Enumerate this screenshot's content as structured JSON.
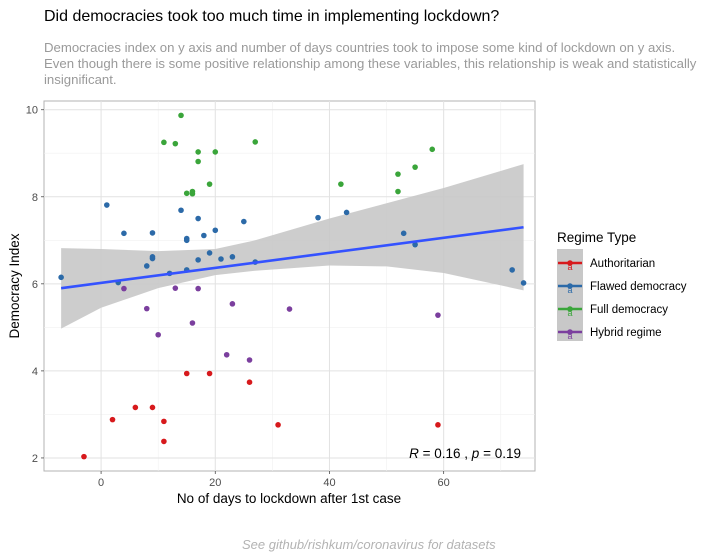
{
  "title": "Did democracies took too much time in implementing lockdown?",
  "subtitle": "Democracies index on y axis and number of days countries took to impose some kind of lockdown on y axis. Even though there is some positive relationship among these variables, this relationship is weak and statistically insignificant.",
  "caption": "See github/rishkum/coronavirus for datasets",
  "colors": {
    "Authoritarian": "#d7191c",
    "Flawed democracy": "#2c6aa8",
    "Full democracy": "#3aa53a",
    "Hybrid regime": "#7b3f9e",
    "trend_line": "#3452ff",
    "confidence_band": "#c8c8c8"
  },
  "chart_data": {
    "type": "scatter",
    "xlabel": "No of days to lockdown after 1st case",
    "ylabel": "Democracy Index",
    "xlim": [
      -10,
      76
    ],
    "ylim": [
      1.7,
      10.2
    ],
    "x_ticks": [
      0,
      20,
      40,
      60
    ],
    "y_ticks": [
      2,
      4,
      6,
      8,
      10
    ],
    "grid": true,
    "legend_title": "Regime Type",
    "legend_position": "right",
    "annotation": {
      "r_label": "R",
      "r_value": "= 0.16 ,",
      "p_label": "p",
      "p_value": "= 0.19",
      "x": 70,
      "y": 2.05
    },
    "trend_line": {
      "x": [
        -7,
        74
      ],
      "y": [
        5.9,
        7.3
      ]
    },
    "confidence_band": {
      "x": [
        -7,
        0,
        10,
        20,
        27,
        40,
        50,
        60,
        74
      ],
      "upper": [
        6.82,
        6.8,
        6.75,
        6.8,
        7.0,
        7.5,
        7.85,
        8.2,
        8.75
      ],
      "lower": [
        4.97,
        5.45,
        5.9,
        6.2,
        6.3,
        6.42,
        6.4,
        6.25,
        5.85
      ]
    },
    "series": [
      {
        "name": "Authoritarian",
        "points": [
          [
            -3,
            2.03
          ],
          [
            2,
            2.88
          ],
          [
            6,
            3.16
          ],
          [
            9,
            3.16
          ],
          [
            11,
            2.84
          ],
          [
            11,
            2.38
          ],
          [
            15,
            3.94
          ],
          [
            19,
            3.94
          ],
          [
            26,
            3.74
          ],
          [
            31,
            2.76
          ],
          [
            59,
            2.76
          ]
        ]
      },
      {
        "name": "Flawed democracy",
        "points": [
          [
            -7,
            6.15
          ],
          [
            1,
            7.81
          ],
          [
            3,
            6.03
          ],
          [
            4,
            7.16
          ],
          [
            8,
            6.41
          ],
          [
            9,
            6.58
          ],
          [
            9,
            6.62
          ],
          [
            9,
            7.17
          ],
          [
            12,
            6.24
          ],
          [
            14,
            7.69
          ],
          [
            15,
            7.04
          ],
          [
            15,
            7.0
          ],
          [
            15,
            6.32
          ],
          [
            17,
            6.55
          ],
          [
            17,
            7.5
          ],
          [
            18,
            7.11
          ],
          [
            19,
            6.71
          ],
          [
            20,
            7.23
          ],
          [
            21,
            6.57
          ],
          [
            23,
            6.62
          ],
          [
            25,
            7.43
          ],
          [
            27,
            6.5
          ],
          [
            38,
            7.52
          ],
          [
            43,
            7.64
          ],
          [
            53,
            7.16
          ],
          [
            55,
            6.9
          ],
          [
            72,
            6.32
          ],
          [
            74,
            6.02
          ]
        ]
      },
      {
        "name": "Full democracy",
        "points": [
          [
            11,
            9.25
          ],
          [
            13,
            9.22
          ],
          [
            14,
            9.87
          ],
          [
            15,
            8.08
          ],
          [
            16,
            8.12
          ],
          [
            16,
            8.07
          ],
          [
            17,
            9.03
          ],
          [
            17,
            8.81
          ],
          [
            19,
            8.29
          ],
          [
            20,
            9.03
          ],
          [
            27,
            9.26
          ],
          [
            42,
            8.29
          ],
          [
            52,
            8.12
          ],
          [
            52,
            8.52
          ],
          [
            55,
            8.68
          ],
          [
            58,
            9.09
          ]
        ]
      },
      {
        "name": "Hybrid regime",
        "points": [
          [
            4,
            5.89
          ],
          [
            8,
            5.43
          ],
          [
            10,
            4.83
          ],
          [
            13,
            5.9
          ],
          [
            16,
            5.1
          ],
          [
            17,
            5.89
          ],
          [
            22,
            4.37
          ],
          [
            23,
            5.54
          ],
          [
            26,
            4.25
          ],
          [
            33,
            5.42
          ],
          [
            59,
            5.28
          ]
        ]
      }
    ]
  }
}
